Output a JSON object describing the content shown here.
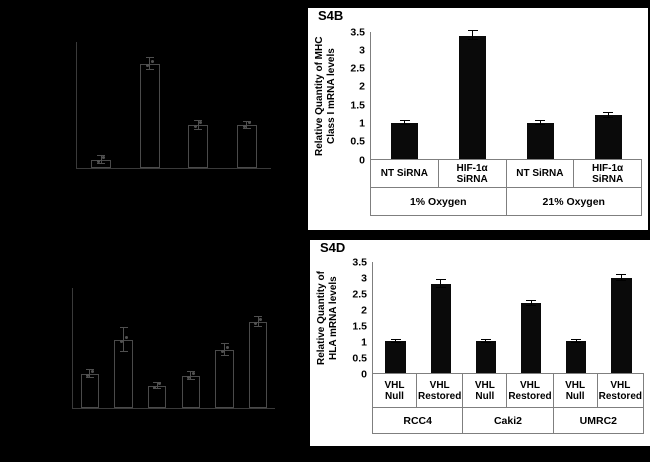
{
  "colors": {
    "figure_background": "#000000",
    "panel_background": "#ffffff",
    "bar_fill": "#000000",
    "axis_line": "#7f7f7f",
    "faint_chart_line": "#4a4a4a",
    "text": "#000000"
  },
  "chart_data": [
    {
      "id": "faint-chart-top-left",
      "type": "bar",
      "render": "ghost",
      "title": "",
      "categories": [
        "",
        "",
        "",
        ""
      ],
      "values": [
        0.25,
        3.3,
        1.35,
        1.35
      ],
      "errors": [
        0.12,
        0.18,
        0.15,
        0.12
      ],
      "ylim": [
        0,
        4
      ],
      "grid": false,
      "legend": null
    },
    {
      "id": "S4B",
      "panel_label": "S4B",
      "type": "bar",
      "render": "excel",
      "title": "",
      "ylabel": "Relative Quantity of MHC Class I mRNA levels",
      "xlabel": "",
      "yticks": [
        "0",
        "0.5",
        "1",
        "1.5",
        "2",
        "2.5",
        "3",
        "3.5"
      ],
      "ylim": [
        0,
        3.5
      ],
      "categories": [
        "NT SiRNA",
        "HIF-1α SiRNA",
        "NT SiRNA",
        "HIF-1α SiRNA"
      ],
      "groups": [
        {
          "label": "1% Oxygen",
          "span": 2
        },
        {
          "label": "21% Oxygen",
          "span": 2
        }
      ],
      "values": [
        1.0,
        3.4,
        1.0,
        1.2
      ],
      "errors": [
        0.05,
        0.12,
        0.05,
        0.07
      ],
      "grid": false,
      "legend": null
    },
    {
      "id": "faint-chart-bottom-left",
      "type": "bar",
      "render": "ghost",
      "title": "",
      "categories": [
        "",
        "",
        "",
        "",
        "",
        ""
      ],
      "values": [
        0.85,
        1.7,
        0.55,
        0.8,
        1.45,
        2.15
      ],
      "errors": [
        0.1,
        0.3,
        0.08,
        0.1,
        0.15,
        0.12
      ],
      "ylim": [
        0,
        3
      ],
      "grid": false,
      "legend": null
    },
    {
      "id": "S4D",
      "panel_label": "S4D",
      "type": "bar",
      "render": "excel",
      "title": "",
      "ylabel": "Relative Quantity of  HLA mRNA levels",
      "xlabel": "",
      "yticks": [
        "0",
        "0.5",
        "1",
        "1.5",
        "2",
        "2.5",
        "3",
        "3.5"
      ],
      "ylim": [
        0,
        3.5
      ],
      "categories": [
        "VHL Null",
        "VHL Restored",
        "VHL Null",
        "VHL Restored",
        "VHL Null",
        "VHL Restored"
      ],
      "groups": [
        {
          "label": "RCC4",
          "span": 2
        },
        {
          "label": "Caki2",
          "span": 2
        },
        {
          "label": "UMRC2",
          "span": 2
        }
      ],
      "values": [
        1.0,
        2.8,
        1.0,
        2.2,
        1.0,
        3.0
      ],
      "errors": [
        0.05,
        0.12,
        0.05,
        0.08,
        0.05,
        0.1
      ],
      "grid": false,
      "legend": null
    }
  ]
}
